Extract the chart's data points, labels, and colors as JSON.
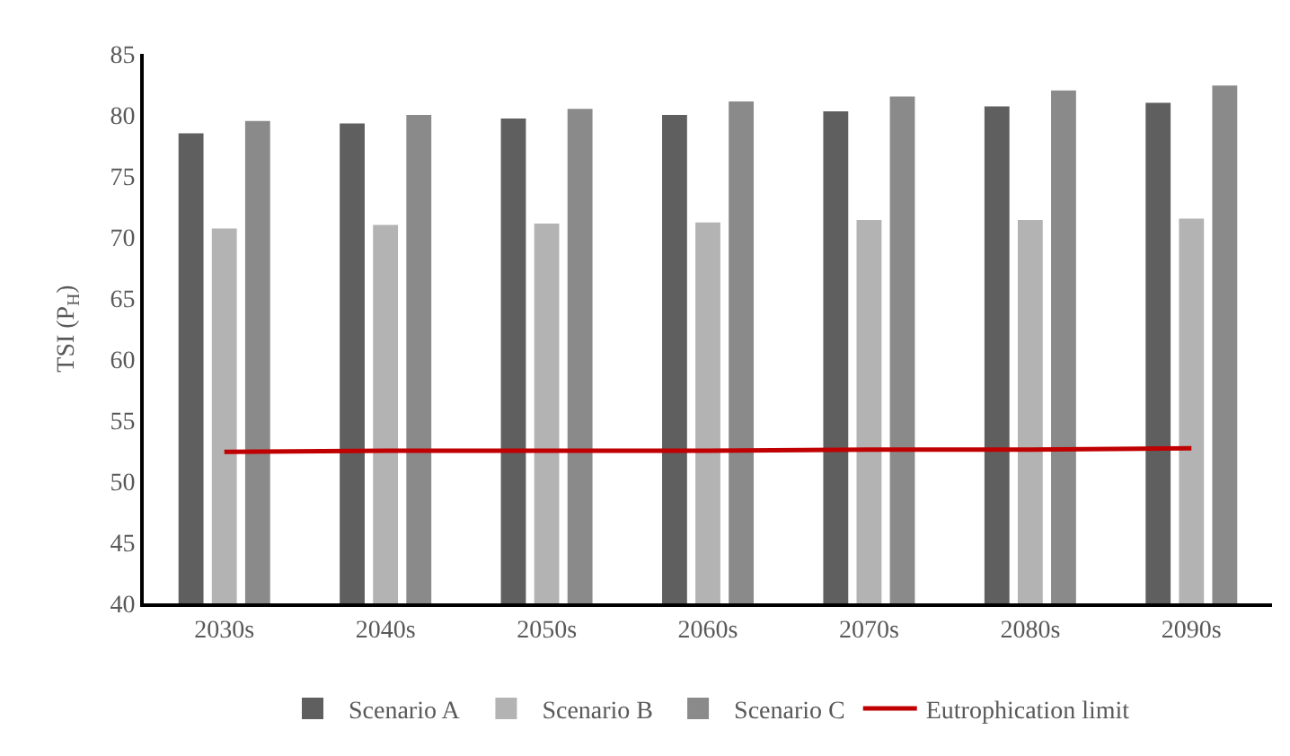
{
  "chart_data": {
    "type": "bar",
    "ylabel": "TSI (P$_{H}$)",
    "categories": [
      "2030s",
      "2040s",
      "2050s",
      "2060s",
      "2070s",
      "2080s",
      "2090s"
    ],
    "series": [
      {
        "name": "Scenario A",
        "color": "#5f5f5f",
        "values": [
          78.5,
          79.3,
          79.7,
          80.0,
          80.3,
          80.7,
          81.0
        ]
      },
      {
        "name": "Scenario B",
        "color": "#b3b3b3",
        "values": [
          70.7,
          71.0,
          71.1,
          71.2,
          71.4,
          71.4,
          71.5
        ]
      },
      {
        "name": "Scenario C",
        "color": "#8a8a8a",
        "values": [
          79.5,
          80.0,
          80.5,
          81.1,
          81.5,
          82.0,
          82.4
        ]
      },
      {
        "name": "Eutrophication limit",
        "type": "line",
        "color": "#c00000",
        "values": [
          52.4,
          52.5,
          52.5,
          52.5,
          52.6,
          52.6,
          52.7
        ]
      }
    ],
    "ylim": [
      40,
      85
    ],
    "yticks": [
      40,
      45,
      50,
      55,
      60,
      65,
      70,
      75,
      80,
      85
    ],
    "grid": false,
    "legend": "bottom"
  }
}
